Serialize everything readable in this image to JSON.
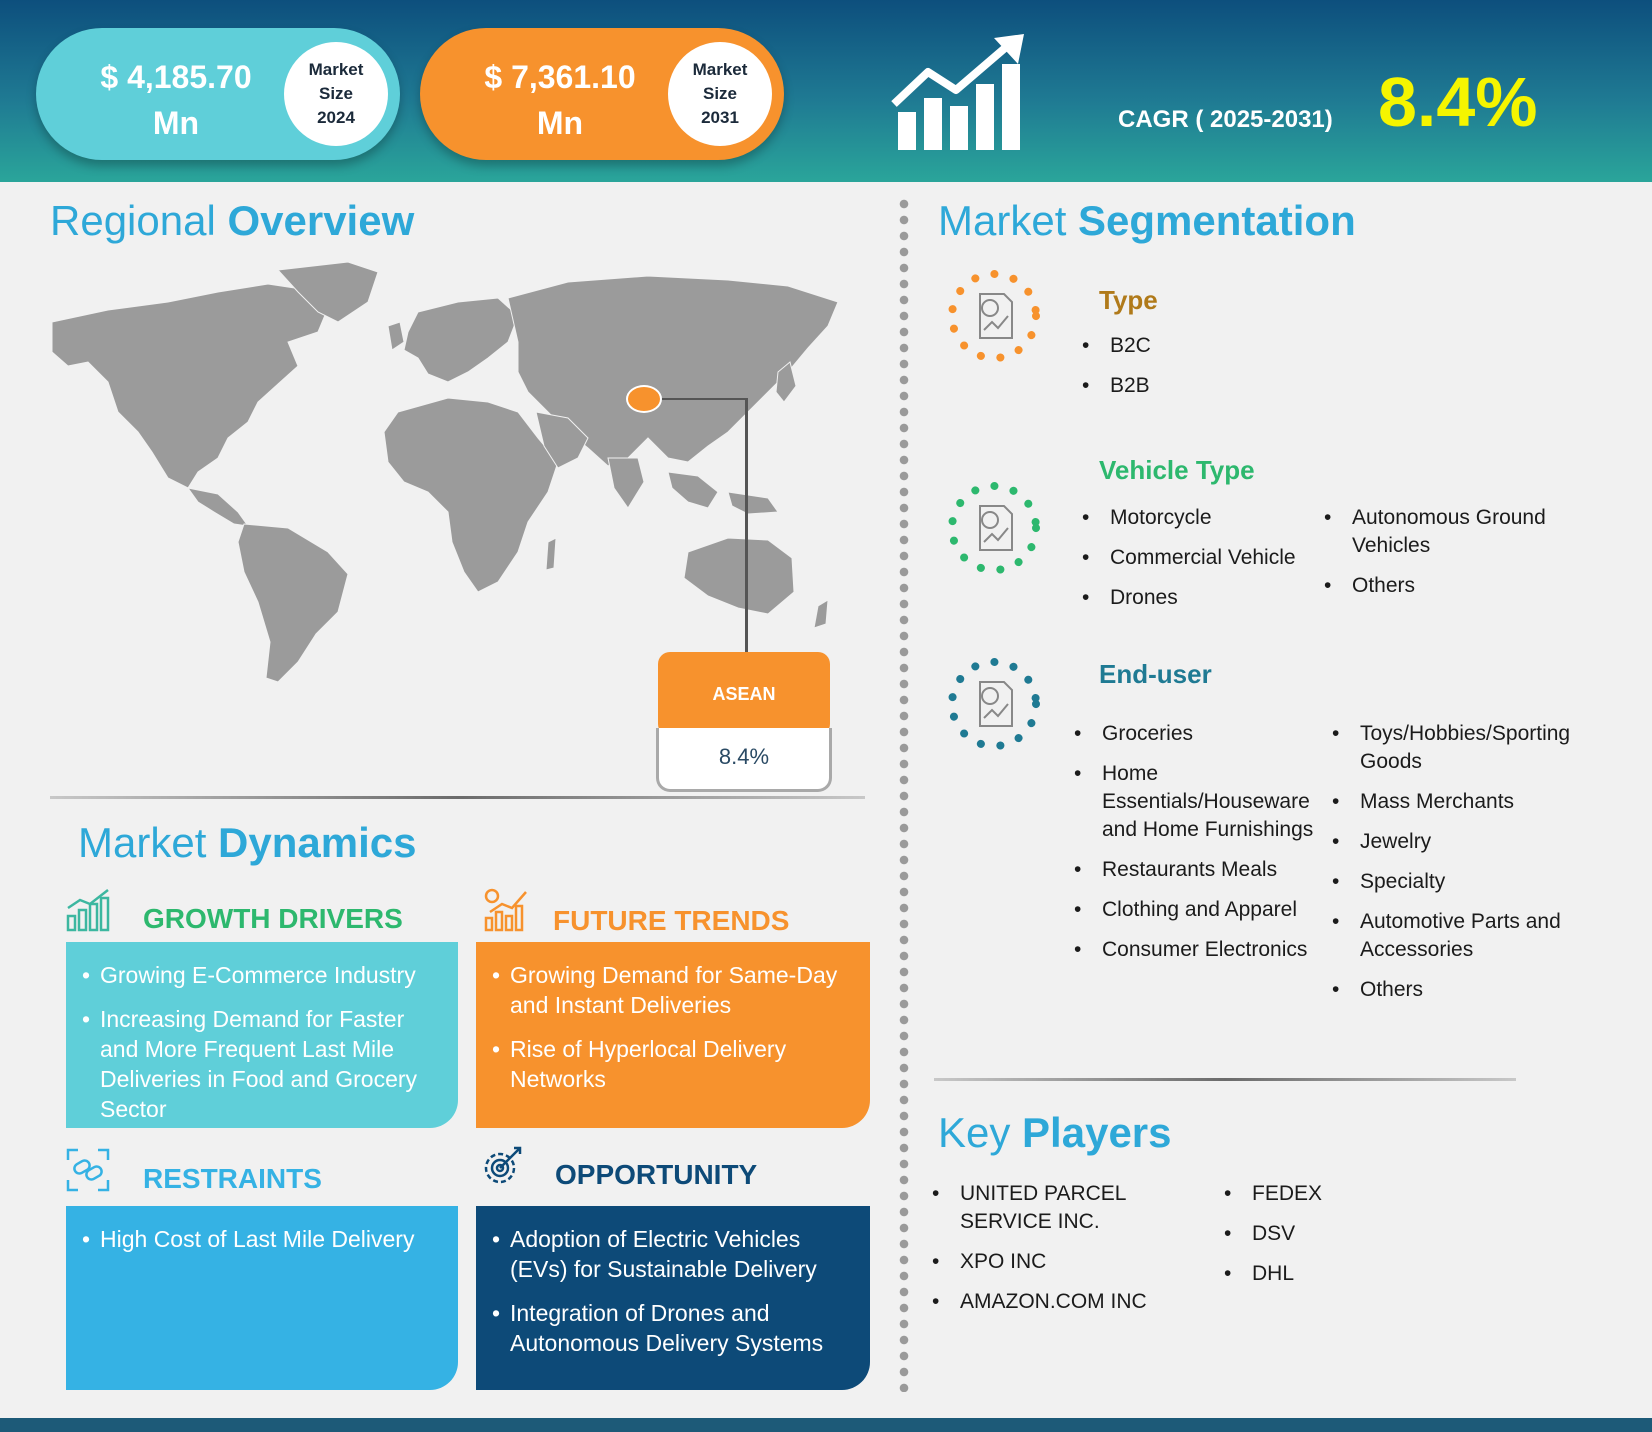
{
  "header": {
    "market_2024": {
      "value": "$  4,185.70 Mn",
      "label_line1": "Market",
      "label_line2": "Size",
      "label_line3": "2024"
    },
    "market_2031": {
      "value": "$   7,361.10 Mn",
      "label_line1": "Market",
      "label_line2": "Size",
      "label_line3": "2031"
    },
    "cagr_label": "CAGR ( 2025-2031)",
    "cagr_value": "8.4%",
    "growth_icon": "growth-chart-icon"
  },
  "regional": {
    "title_light": "Regional ",
    "title_bold": "Overview",
    "region": "ASEAN",
    "region_value": "8.4%"
  },
  "dynamics": {
    "title_light": "Market ",
    "title_bold": "Dynamics",
    "drivers": {
      "heading": "GROWTH DRIVERS",
      "items": [
        "Growing E-Commerce Industry",
        "Increasing Demand for Faster and More Frequent Last Mile Deliveries in Food and Grocery Sector"
      ]
    },
    "trends": {
      "heading": "FUTURE TRENDS",
      "items": [
        "Growing Demand for Same-Day and Instant Deliveries",
        "Rise of Hyperlocal Delivery Networks"
      ]
    },
    "restraints": {
      "heading": "RESTRAINTS",
      "items": [
        "High Cost of Last Mile Delivery"
      ]
    },
    "opportunity": {
      "heading": "OPPORTUNITY",
      "items": [
        "Adoption of Electric Vehicles (EVs) for Sustainable Delivery",
        "Integration of Drones and Autonomous Delivery Systems"
      ]
    }
  },
  "segmentation": {
    "title_light": "Market ",
    "title_bold": "Segmentation",
    "type": {
      "heading": "Type",
      "items": [
        "B2C",
        "B2B"
      ]
    },
    "vehicle": {
      "heading": "Vehicle Type",
      "col1": [
        "Motorcycle",
        "Commercial Vehicle",
        "Drones"
      ],
      "col2": [
        "Autonomous Ground Vehicles",
        "Others"
      ]
    },
    "enduser": {
      "heading": "End-user",
      "col1": [
        "Groceries",
        "Home Essentials/Houseware and Home Furnishings",
        "Restaurants Meals",
        "Clothing and Apparel",
        "Consumer Electronics"
      ],
      "col2": [
        "Toys/Hobbies/Sporting Goods",
        "Mass Merchants",
        "Jewelry",
        "Specialty",
        "Automotive Parts and Accessories",
        "Others"
      ]
    }
  },
  "players": {
    "title_light": "Key ",
    "title_bold": "Players",
    "col1": [
      "UNITED PARCEL SERVICE INC.",
      "XPO INC",
      "AMAZON.COM INC"
    ],
    "col2": [
      "FEDEX",
      "DSV",
      "DHL"
    ]
  },
  "colors": {
    "teal": "#5fcfd9",
    "orange": "#f7922d",
    "blue": "#35b2e4",
    "navy": "#0d4a78",
    "yellow": "#f5f500",
    "title_blue": "#2ea8d8"
  }
}
